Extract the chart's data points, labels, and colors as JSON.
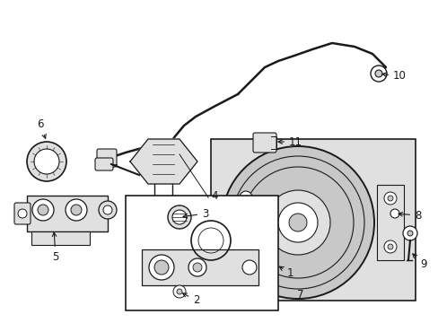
{
  "bg_color": "#ffffff",
  "line_color": "#1a1a1a",
  "gray_fill": "#c8c8c8",
  "light_gray": "#e0e0e0",
  "mid_gray": "#aaaaaa",
  "figsize": [
    4.89,
    3.6
  ],
  "dpi": 100,
  "xlim": [
    0,
    489
  ],
  "ylim": [
    0,
    360
  ]
}
